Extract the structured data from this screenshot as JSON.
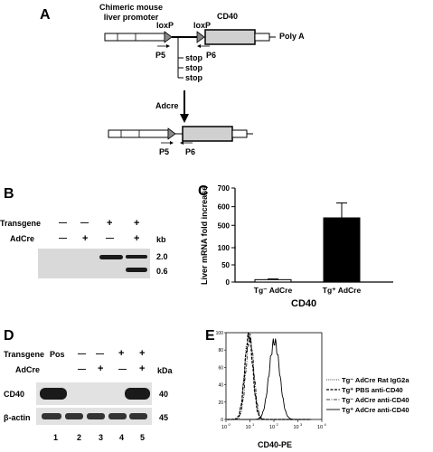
{
  "panel_a": {
    "letter": "A",
    "promoter_label": "Chimeric mouse liver promoter",
    "promoter_line1": "Chimeric mouse",
    "promoter_line2": "liver promoter",
    "loxp1": "loxP",
    "loxp2": "loxP",
    "cd40": "CD40",
    "polya": "Poly A",
    "p5": "P5",
    "p6": "P6",
    "stop": [
      "stop",
      "stop",
      "stop"
    ],
    "adcre": "Adcre",
    "p5_after": "P5",
    "p6_after": "P6"
  },
  "panel_b": {
    "letter": "B",
    "transgene_label": "Transgene",
    "adcre_label": "AdCre",
    "transgene_marks": [
      "—",
      "—",
      "+",
      "+"
    ],
    "adcre_marks": [
      "—",
      "+",
      "—",
      "+"
    ],
    "kb_label": "kb",
    "size_markers": [
      "2.0",
      "0.6"
    ]
  },
  "panel_c": {
    "letter": "C",
    "ylabel": "Liver mRNA fold increase",
    "xlabel": "CD40",
    "bar_color_1": "#ffffff",
    "bar_color_2": "#000000"
  },
  "panel_d": {
    "letter": "D",
    "transgene_label": "Transgene",
    "pos_label": "Pos",
    "adcre_label": "AdCre",
    "transgene_marks": [
      "—",
      "—",
      "+",
      "+"
    ],
    "adcre_marks": [
      "—",
      "+",
      "—",
      "+"
    ],
    "kda_label": "kDa",
    "row1_label": "CD40",
    "row2_label": "β-actin",
    "row1_mw": "40",
    "row2_mw": "45",
    "lane_numbers": [
      "1",
      "2",
      "3",
      "4",
      "5"
    ]
  },
  "panel_e": {
    "letter": "E",
    "xlabel": "CD40-PE",
    "x_tick_exponents": [
      "0",
      "1",
      "2",
      "3",
      "4"
    ],
    "y_ticks": [
      "0",
      "20",
      "40",
      "60",
      "80",
      "100"
    ]
  },
  "chart_data": [
    {
      "type": "bar",
      "categories": [
        "Tg⁻ AdCre",
        "Tg⁺ AdCre"
      ],
      "values": [
        7,
        540
      ],
      "error_upper": [
        2,
        80
      ],
      "yticks": [
        0,
        50,
        100,
        500,
        600,
        700
      ],
      "ylim": [
        0,
        700
      ],
      "axis_break": [
        100,
        380
      ],
      "ylabel": "Liver mRNA fold increase",
      "xlabel": "CD40"
    },
    {
      "type": "line",
      "xscale": "log",
      "xlim": [
        1,
        10000
      ],
      "ylim": [
        0,
        100
      ],
      "xlabel": "CD40-PE",
      "series": [
        {
          "name": "Tg⁻ AdCre Rat IgG2a",
          "style": "dotted",
          "peak_x": 9,
          "peak_y": 100
        },
        {
          "name": "Tg⁺ PBS anti-CD40",
          "style": "dashed-bold",
          "peak_x": 9,
          "peak_y": 96
        },
        {
          "name": "Tg⁻ AdCre anti-CD40",
          "style": "dash-dot",
          "peak_x": 10,
          "peak_y": 93
        },
        {
          "name": "Tg⁺ AdCre anti-CD40",
          "style": "solid",
          "peak_x": 105,
          "peak_y": 90
        }
      ]
    }
  ]
}
